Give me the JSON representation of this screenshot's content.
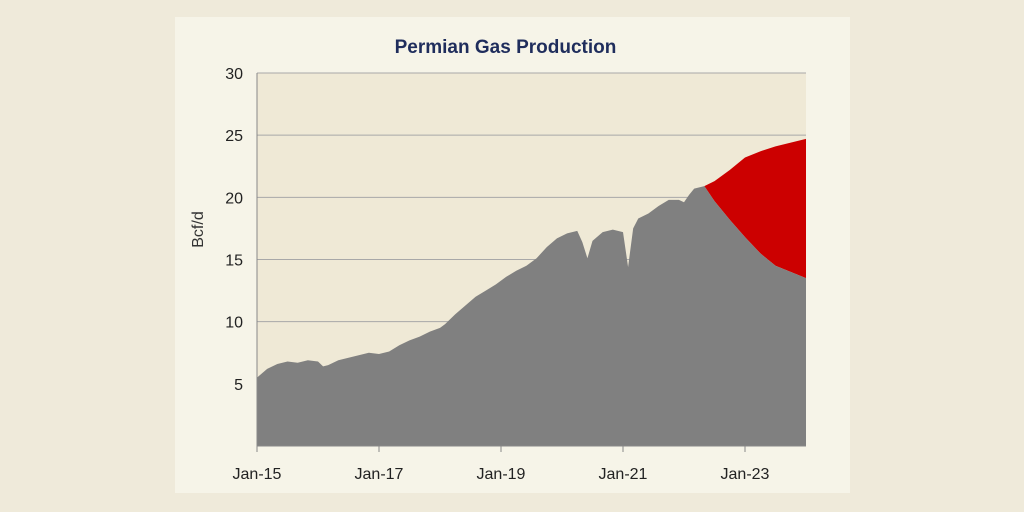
{
  "colors": {
    "plot_bg": "#efe9d6",
    "grid": "#a8a8a8",
    "base_area": "#808080",
    "upside_area": "#cc0000",
    "title": "#1f2d5c"
  },
  "chart_data": {
    "type": "area",
    "title": "Permian Gas Production",
    "xlabel": "",
    "ylabel": "Bcf/d",
    "ylim": [
      0,
      30
    ],
    "yticks": [
      5,
      10,
      15,
      20,
      25,
      30
    ],
    "xlim": [
      "2015-01",
      "2024-01"
    ],
    "xticks": [
      {
        "date": "2015-01",
        "label": "Jan-15"
      },
      {
        "date": "2017-01",
        "label": "Jan-17"
      },
      {
        "date": "2019-01",
        "label": "Jan-19"
      },
      {
        "date": "2021-01",
        "label": "Jan-21"
      },
      {
        "date": "2023-01",
        "label": "Jan-23"
      }
    ],
    "grid": true,
    "series": [
      {
        "name": "",
        "points": [
          [
            "2015-01",
            5.5
          ],
          [
            "2015-03",
            6.2
          ],
          [
            "2015-05",
            6.6
          ],
          [
            "2015-07",
            6.8
          ],
          [
            "2015-09",
            6.7
          ],
          [
            "2015-11",
            6.9
          ],
          [
            "2016-01",
            6.8
          ],
          [
            "2016-02",
            6.4
          ],
          [
            "2016-03",
            6.5
          ],
          [
            "2016-05",
            6.9
          ],
          [
            "2016-07",
            7.1
          ],
          [
            "2016-09",
            7.3
          ],
          [
            "2016-11",
            7.5
          ],
          [
            "2017-01",
            7.4
          ],
          [
            "2017-03",
            7.6
          ],
          [
            "2017-05",
            8.1
          ],
          [
            "2017-07",
            8.5
          ],
          [
            "2017-09",
            8.8
          ],
          [
            "2017-11",
            9.2
          ],
          [
            "2018-01",
            9.5
          ],
          [
            "2018-02",
            9.8
          ],
          [
            "2018-04",
            10.6
          ],
          [
            "2018-06",
            11.3
          ],
          [
            "2018-08",
            12.0
          ],
          [
            "2018-10",
            12.5
          ],
          [
            "2018-12",
            13.0
          ],
          [
            "2019-02",
            13.6
          ],
          [
            "2019-04",
            14.1
          ],
          [
            "2019-06",
            14.5
          ],
          [
            "2019-08",
            15.1
          ],
          [
            "2019-10",
            16.0
          ],
          [
            "2019-12",
            16.7
          ],
          [
            "2020-02",
            17.1
          ],
          [
            "2020-04",
            17.3
          ],
          [
            "2020-05",
            16.4
          ],
          [
            "2020-06",
            15.1
          ],
          [
            "2020-07",
            16.5
          ],
          [
            "2020-09",
            17.2
          ],
          [
            "2020-11",
            17.4
          ],
          [
            "2020-12",
            17.3
          ],
          [
            "2021-01",
            17.2
          ],
          [
            "2021-02",
            14.4
          ],
          [
            "2021-03",
            17.5
          ],
          [
            "2021-04",
            18.3
          ],
          [
            "2021-06",
            18.7
          ],
          [
            "2021-08",
            19.3
          ],
          [
            "2021-10",
            19.8
          ],
          [
            "2021-12",
            19.8
          ],
          [
            "2022-01",
            19.6
          ],
          [
            "2022-02",
            20.2
          ],
          [
            "2022-03",
            20.7
          ],
          [
            "2022-05",
            20.9
          ],
          [
            "2022-07",
            19.7
          ],
          [
            "2022-10",
            18.2
          ],
          [
            "2023-01",
            16.8
          ],
          [
            "2023-04",
            15.5
          ],
          [
            "2023-07",
            14.5
          ],
          [
            "2024-01",
            13.5
          ]
        ]
      },
      {
        "name": "",
        "points": [
          [
            "2022-05",
            20.9
          ],
          [
            "2022-07",
            21.3
          ],
          [
            "2022-10",
            22.2
          ],
          [
            "2023-01",
            23.2
          ],
          [
            "2023-04",
            23.7
          ],
          [
            "2023-07",
            24.1
          ],
          [
            "2023-10",
            24.4
          ],
          [
            "2024-01",
            24.7
          ]
        ]
      }
    ]
  }
}
